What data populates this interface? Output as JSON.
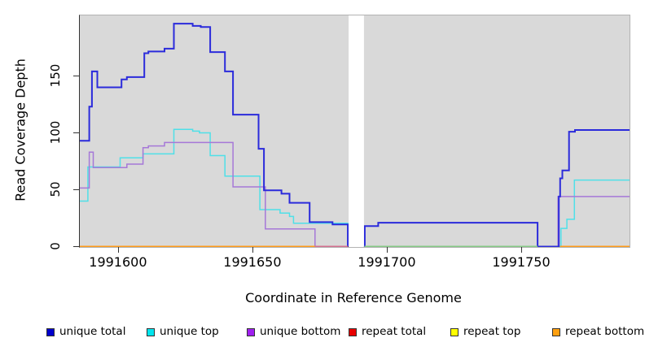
{
  "chart_data": {
    "type": "line",
    "style": "step",
    "xlabel": "Coordinate in Reference Genome",
    "ylabel": "Read Coverage Depth",
    "xlim": [
      1991585.5,
      1991790
    ],
    "ylim": [
      0,
      203
    ],
    "x_ticks": [
      "1991600",
      "1991650",
      "1991700",
      "1991750"
    ],
    "x_tick_values": [
      1991600,
      1991650,
      1991700,
      1991750
    ],
    "y_ticks": [
      "0",
      "50",
      "100",
      "150"
    ],
    "y_tick_values": [
      0,
      50,
      100,
      150
    ],
    "plot_bg": "#d9d9d9",
    "grid": false,
    "gap_region": {
      "from": 1991685.5,
      "to": 1991691.2,
      "color": "#ffffff"
    },
    "series": [
      {
        "name": "repeat total",
        "color": "#e80000",
        "width": 1.5,
        "segments": [
          [
            [
              1991585.5,
              0
            ],
            [
              1991685.2,
              0
            ]
          ],
          [
            [
              1991691.3,
              0
            ],
            [
              1991790,
              0
            ]
          ]
        ]
      },
      {
        "name": "repeat top",
        "color": "#f5f500",
        "width": 1.5,
        "segments": [
          [
            [
              1991585.5,
              0
            ],
            [
              1991685.2,
              0
            ]
          ],
          [
            [
              1991691.3,
              0
            ],
            [
              1991790,
              0
            ]
          ]
        ]
      },
      {
        "name": "repeat bottom",
        "color": "#ff9c1a",
        "width": 2,
        "segments": [
          [
            [
              1991585.5,
              0
            ],
            [
              1991685.2,
              0
            ]
          ],
          [
            [
              1991691.3,
              0
            ],
            [
              1991790,
              0
            ]
          ]
        ]
      },
      {
        "name": "unique top",
        "color": "#4fe0e8",
        "width": 1.5,
        "segments": [
          [
            [
              1991585.5,
              40
            ],
            [
              1991588.5,
              70
            ],
            [
              1991600.5,
              78
            ],
            [
              1991609,
              81.5
            ],
            [
              1991620.5,
              103
            ],
            [
              1991627.5,
              101.5
            ],
            [
              1991630,
              100
            ],
            [
              1991634,
              80
            ],
            [
              1991639.5,
              62
            ],
            [
              1991652.5,
              32.5
            ],
            [
              1991660,
              29.5
            ],
            [
              1991663.5,
              26.5
            ],
            [
              1991665,
              20.5
            ],
            [
              1991685.2,
              0
            ]
          ],
          [
            [
              1991691.3,
              0
            ],
            [
              1991764.5,
              16
            ],
            [
              1991766.7,
              24
            ],
            [
              1991769.5,
              58.5
            ],
            [
              1991790,
              58.5
            ]
          ]
        ]
      },
      {
        "name": "unique bottom",
        "color": "#a678d8",
        "width": 1.5,
        "segments": [
          [
            [
              1991585.5,
              51.5
            ],
            [
              1991589,
              83
            ],
            [
              1991590.5,
              69.5
            ],
            [
              1991603,
              72.5
            ],
            [
              1991609,
              87
            ],
            [
              1991611,
              88.5
            ],
            [
              1991617,
              91.5
            ],
            [
              1991642.5,
              52.5
            ],
            [
              1991654.5,
              15.5
            ],
            [
              1991673,
              0
            ],
            [
              1991685.2,
              0
            ]
          ],
          [
            [
              1991691.3,
              0
            ],
            [
              1991763.4,
              44
            ],
            [
              1991790,
              44
            ]
          ]
        ]
      },
      {
        "name": "unique total",
        "color": "#2b2bdb",
        "width": 2,
        "segments": [
          [
            [
              1991585.5,
              93
            ],
            [
              1991589,
              123
            ],
            [
              1991590,
              154
            ],
            [
              1991592,
              140
            ],
            [
              1991601,
              147
            ],
            [
              1991603,
              149
            ],
            [
              1991609.5,
              170
            ],
            [
              1991611,
              171.5
            ],
            [
              1991617,
              174
            ],
            [
              1991620.5,
              196
            ],
            [
              1991627.5,
              194
            ],
            [
              1991630.5,
              193
            ],
            [
              1991634,
              171
            ],
            [
              1991639.5,
              154
            ],
            [
              1991642.5,
              116
            ],
            [
              1991652,
              86
            ],
            [
              1991654,
              49.5
            ],
            [
              1991660.5,
              46.5
            ],
            [
              1991663.5,
              38.5
            ],
            [
              1991671,
              21.5
            ],
            [
              1991679.5,
              19.5
            ],
            [
              1991685.2,
              0
            ]
          ],
          [
            [
              1991691.3,
              0
            ],
            [
              1991691.5,
              18
            ],
            [
              1991696.5,
              21
            ],
            [
              1991755.8,
              0
            ],
            [
              1991763.7,
              44
            ],
            [
              1991764.2,
              60
            ],
            [
              1991765,
              67
            ],
            [
              1991767.5,
              101
            ],
            [
              1991769.7,
              102.5
            ],
            [
              1991790,
              102.5
            ]
          ]
        ]
      },
      {
        "name": "zero baseline visible colors",
        "color": "mixed",
        "width": 2,
        "note": "color of the y=0 line varies along x in the rendered plot",
        "segments": []
      }
    ],
    "baseline_segments": [
      {
        "from": 1991585.5,
        "to": 1991673,
        "color": "#ff9c1a"
      },
      {
        "from": 1991673,
        "to": 1991685.2,
        "color": "#d4708f"
      },
      {
        "from": 1991691.4,
        "to": 1991755.8,
        "color": "#85c985"
      },
      {
        "from": 1991764.2,
        "to": 1991790,
        "color": "#ff9c1a"
      }
    ],
    "legend": [
      {
        "label": "unique total",
        "color": "#0000cd"
      },
      {
        "label": "unique top",
        "color": "#00e5ee"
      },
      {
        "label": "unique bottom",
        "color": "#a020f0"
      },
      {
        "label": "repeat total",
        "color": "#e80000"
      },
      {
        "label": "repeat top",
        "color": "#ffff00"
      },
      {
        "label": "repeat bottom",
        "color": "#ffa010"
      }
    ],
    "legend_position": "bottom"
  }
}
